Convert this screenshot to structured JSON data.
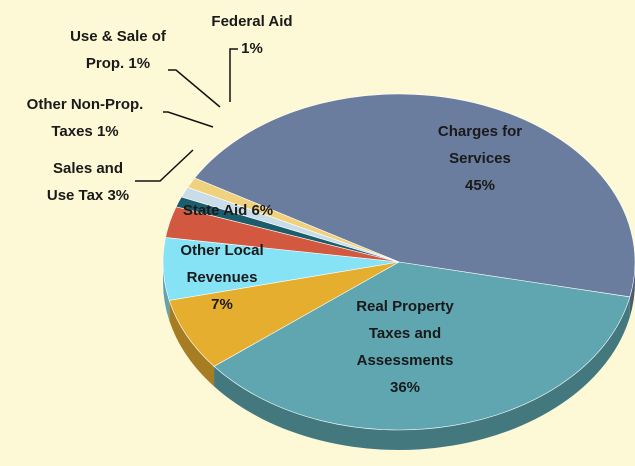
{
  "chart_data": {
    "type": "pie",
    "categories": [
      "Charges for Services",
      "Real Property Taxes and Assessments",
      "Other Local Revenues",
      "State Aid",
      "Sales and Use Tax",
      "Other Non-Prop. Taxes",
      "Use & Sale of Prop.",
      "Federal Aid"
    ],
    "values": [
      45,
      36,
      7,
      6,
      3,
      1,
      1,
      1
    ],
    "value_labels": [
      "45%",
      "36%",
      "7%",
      "6%",
      "3%",
      "1%",
      "1%",
      "1%"
    ],
    "colors": [
      "#6a7d9e",
      "#5fa6b1",
      "#e6ae2f",
      "#86e3f6",
      "#d2593f",
      "#1c5d6c",
      "#c9dde8",
      "#f0d27e"
    ]
  }
}
